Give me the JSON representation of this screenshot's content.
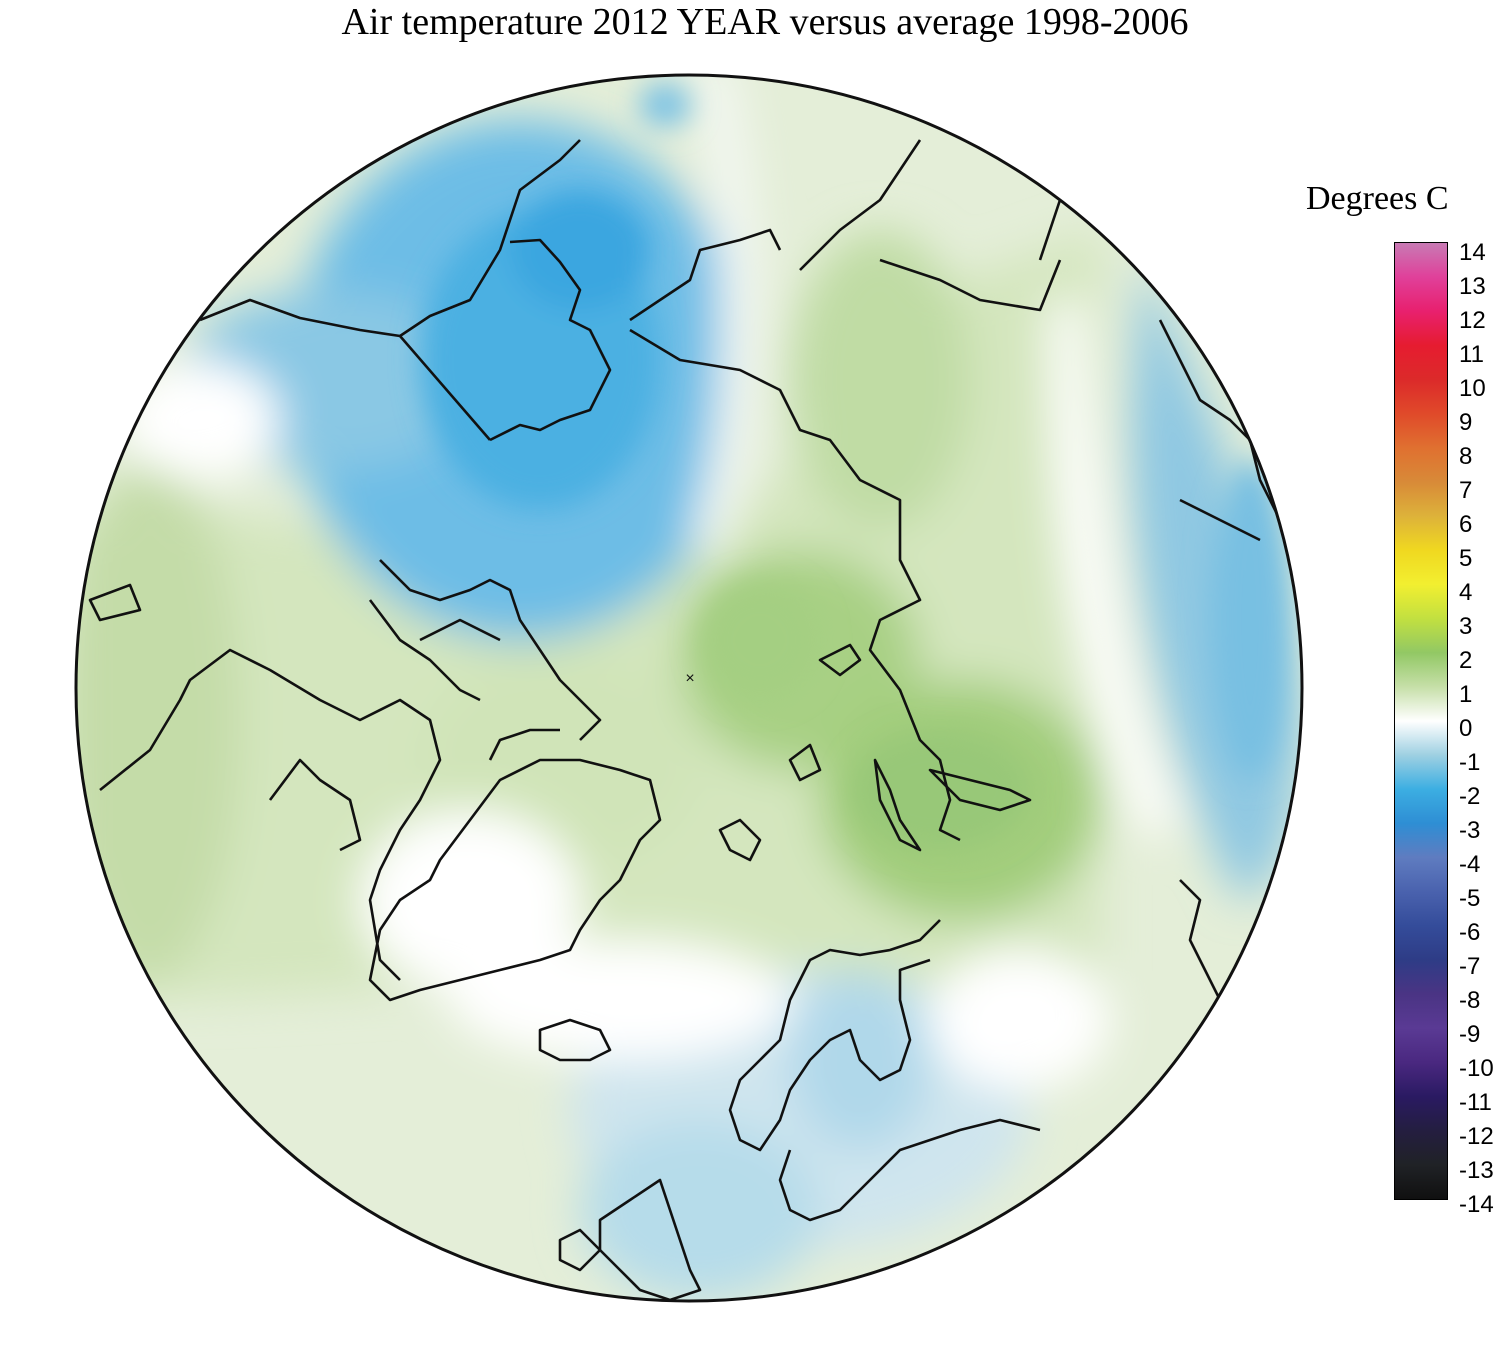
{
  "title": "Air temperature 2012 YEAR versus average 1998-2006",
  "legend": {
    "title": "Degrees C",
    "ticks": [
      "14",
      "13",
      "12",
      "11",
      "10",
      "9",
      "8",
      "7",
      "6",
      "5",
      "4",
      "3",
      "2",
      "1",
      "0",
      "-1",
      "-2",
      "-3",
      "-4",
      "-5",
      "-6",
      "-7",
      "-8",
      "-9",
      "-10",
      "-11",
      "-12",
      "-13",
      "-14"
    ],
    "range": [
      -14,
      14
    ],
    "color_stops": [
      {
        "value": 14,
        "color": "#c87ab4"
      },
      {
        "value": 13,
        "color": "#e0409a"
      },
      {
        "value": 12,
        "color": "#e8206e"
      },
      {
        "value": 11,
        "color": "#e61c30"
      },
      {
        "value": 10,
        "color": "#dc2a2a"
      },
      {
        "value": 9,
        "color": "#e04a2a"
      },
      {
        "value": 8,
        "color": "#e07030"
      },
      {
        "value": 7,
        "color": "#d88a38"
      },
      {
        "value": 6,
        "color": "#ddb23a"
      },
      {
        "value": 5,
        "color": "#f0d820"
      },
      {
        "value": 4,
        "color": "#f2ef30"
      },
      {
        "value": 3,
        "color": "#c2e040"
      },
      {
        "value": 2,
        "color": "#92c864"
      },
      {
        "value": 1,
        "color": "#c6dfa8"
      },
      {
        "value": 0,
        "color": "#ffffff"
      },
      {
        "value": -1,
        "color": "#9ed0e2"
      },
      {
        "value": -2,
        "color": "#3caee2"
      },
      {
        "value": -3,
        "color": "#2e8ed4"
      },
      {
        "value": -4,
        "color": "#5f7cc0"
      },
      {
        "value": -5,
        "color": "#4a62ae"
      },
      {
        "value": -6,
        "color": "#344c9a"
      },
      {
        "value": -7,
        "color": "#2e3c86"
      },
      {
        "value": -8,
        "color": "#4a3484"
      },
      {
        "value": -9,
        "color": "#5a3a94"
      },
      {
        "value": -10,
        "color": "#4a2880"
      },
      {
        "value": -11,
        "color": "#2a1a62"
      },
      {
        "value": -12,
        "color": "#241e40"
      },
      {
        "value": -13,
        "color": "#202226"
      },
      {
        "value": -14,
        "color": "#101010"
      }
    ]
  },
  "map": {
    "projection": "north polar stereographic",
    "variable": "air temperature anomaly",
    "units": "Degrees C",
    "colors": {
      "cold_strong": "#3fa9de",
      "cold_mid": "#7fc0e0",
      "cold_weak": "#c6e2ee",
      "neutral": "#ffffff",
      "warm_weak": "#e6efda",
      "warm_mid": "#c8dfac",
      "warm_strong": "#a6cf80",
      "coastline": "#1a1a1a"
    }
  }
}
